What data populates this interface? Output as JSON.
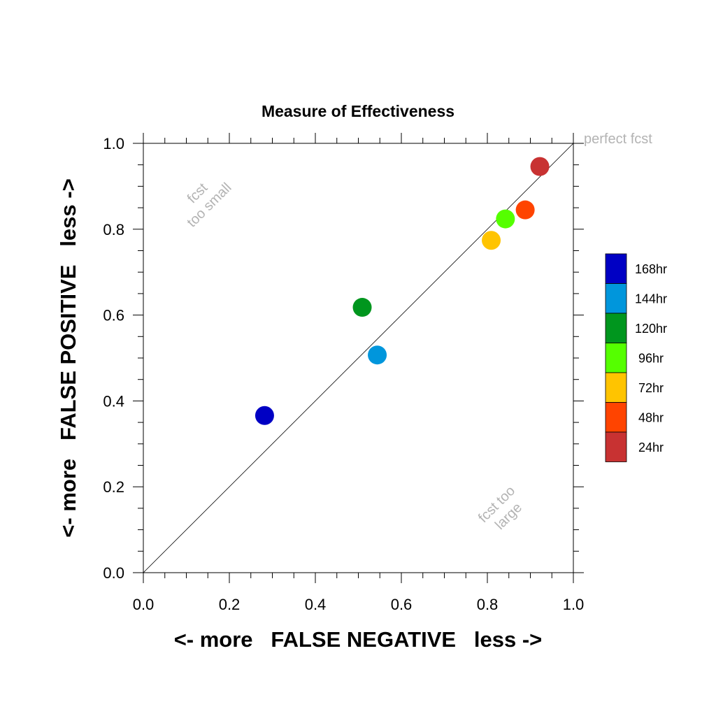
{
  "chart_data": {
    "type": "scatter",
    "title": "Measure of Effectiveness",
    "xlabel": "<- more   FALSE NEGATIVE   less ->",
    "ylabel": "<- more   FALSE POSITIVE   less ->",
    "xlim": [
      0.0,
      1.0
    ],
    "ylim": [
      0.0,
      1.0
    ],
    "xticks": [
      "0.0",
      "0.2",
      "0.4",
      "0.6",
      "0.8",
      "1.0"
    ],
    "yticks": [
      "0.0",
      "0.2",
      "0.4",
      "0.6",
      "0.8",
      "1.0"
    ],
    "grid": false,
    "diagonal_reference_line": true,
    "legend_placement": "right",
    "annotations": {
      "perfect": "perfect fcst",
      "too_small_line1": "fcst",
      "too_small_line2": "too small",
      "too_large_line1": "fcst too",
      "too_large_line2": "large"
    },
    "series": [
      {
        "name": "168hr",
        "color": "#0000c4",
        "x": 0.282,
        "y": 0.366
      },
      {
        "name": "144hr",
        "color": "#0096dc",
        "x": 0.544,
        "y": 0.507
      },
      {
        "name": "120hr",
        "color": "#00961e",
        "x": 0.509,
        "y": 0.618
      },
      {
        "name": "96hr",
        "color": "#55ff00",
        "x": 0.842,
        "y": 0.824
      },
      {
        "name": "72hr",
        "color": "#ffc400",
        "x": 0.809,
        "y": 0.774
      },
      {
        "name": "48hr",
        "color": "#ff4400",
        "x": 0.888,
        "y": 0.845
      },
      {
        "name": "24hr",
        "color": "#c83232",
        "x": 0.922,
        "y": 0.946
      }
    ]
  }
}
